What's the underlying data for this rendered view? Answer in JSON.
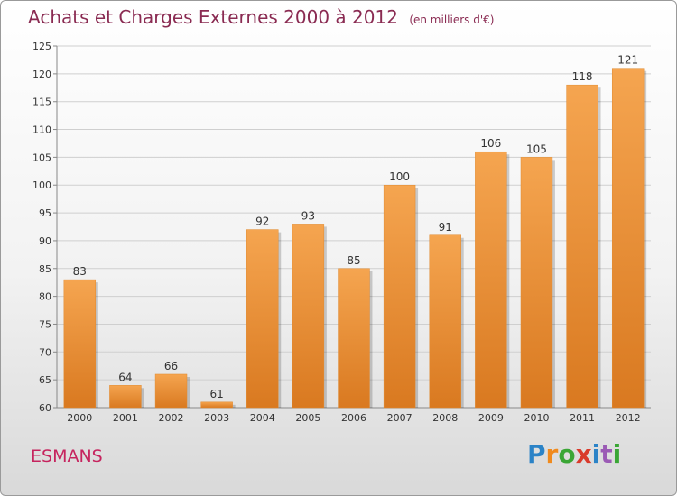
{
  "title": "Achats et Charges Externes 2000 à 2012",
  "subtitle": "(en milliers d'€)",
  "location": "ESMANS",
  "logo": {
    "text": "Proxiti",
    "letters": [
      "P",
      "r",
      "o",
      "x",
      "i",
      "t",
      "i"
    ],
    "colors": [
      "#2b83c7",
      "#f08a1d",
      "#3aa635",
      "#d93a2b",
      "#2b83c7",
      "#9b5bb5",
      "#3aa635"
    ]
  },
  "colors": {
    "bar_top": "#f5a550",
    "bar_bottom": "#d97920",
    "title": "#8a2b52",
    "location": "#c6245e"
  },
  "chart_data": {
    "type": "bar",
    "categories": [
      "2000",
      "2001",
      "2002",
      "2003",
      "2004",
      "2005",
      "2006",
      "2007",
      "2008",
      "2009",
      "2010",
      "2011",
      "2012"
    ],
    "values": [
      83,
      64,
      66,
      61,
      92,
      93,
      85,
      100,
      91,
      106,
      105,
      118,
      121
    ],
    "ylim": [
      60,
      125
    ],
    "yticks": [
      60,
      65,
      70,
      75,
      80,
      85,
      90,
      95,
      100,
      105,
      110,
      115,
      120,
      125
    ],
    "grid": "horizontal"
  }
}
